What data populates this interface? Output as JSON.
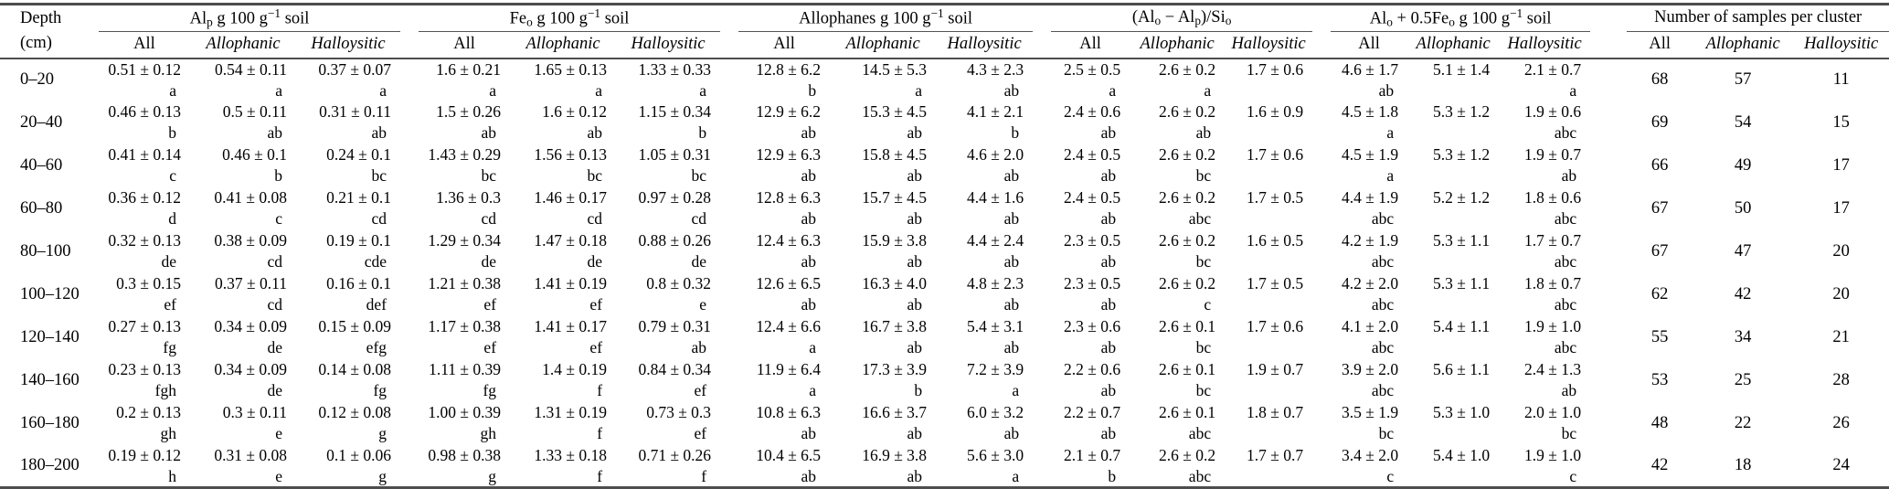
{
  "colors": {
    "rule_heavy": "#4d4d4d",
    "rule_light": "#555555",
    "text": "#000000",
    "background": "#ffffff"
  },
  "table": {
    "depth_header": {
      "line1": "Depth",
      "line2": "(cm)"
    },
    "groups": [
      {
        "id": "alp",
        "title_segments": [
          {
            "t": "Al"
          },
          {
            "t": "p",
            "m": "sub"
          },
          {
            "t": " g 100 g"
          },
          {
            "t": "−1",
            "m": "sup"
          },
          {
            "t": " soil"
          }
        ],
        "subheaders": [
          "All",
          "Allophanic",
          "Halloysitic"
        ]
      },
      {
        "id": "feo",
        "title_segments": [
          {
            "t": "Fe"
          },
          {
            "t": "o",
            "m": "sub"
          },
          {
            "t": " g 100 g"
          },
          {
            "t": "−1",
            "m": "sup"
          },
          {
            "t": " soil"
          }
        ],
        "subheaders": [
          "All",
          "Allophanic",
          "Halloysitic"
        ]
      },
      {
        "id": "allophanes",
        "title_segments": [
          {
            "t": "Allophanes g 100 g"
          },
          {
            "t": "−1",
            "m": "sup"
          },
          {
            "t": " soil"
          }
        ],
        "subheaders": [
          "All",
          "Allophanic",
          "Halloysitic"
        ]
      },
      {
        "id": "ratio",
        "title_segments": [
          {
            "t": "(Al"
          },
          {
            "t": "o",
            "m": "sub"
          },
          {
            "t": " − Al"
          },
          {
            "t": "p",
            "m": "sub"
          },
          {
            "t": ")/Si"
          },
          {
            "t": "o",
            "m": "sub"
          }
        ],
        "subheaders": [
          "All",
          "Allophanic",
          "Halloysitic"
        ]
      },
      {
        "id": "alofe",
        "title_segments": [
          {
            "t": "Al"
          },
          {
            "t": "o",
            "m": "sub"
          },
          {
            "t": " + 0.5Fe"
          },
          {
            "t": "o",
            "m": "sub"
          },
          {
            "t": " g 100 g"
          },
          {
            "t": "−1",
            "m": "sup"
          },
          {
            "t": " soil"
          }
        ],
        "subheaders": [
          "All",
          "Allophanic",
          "Halloysitic"
        ]
      },
      {
        "id": "samples",
        "title_segments": [
          {
            "t": "Number of samples per cluster"
          }
        ],
        "subheaders": [
          "All",
          "Allophanic",
          "Halloysitic"
        ]
      }
    ],
    "rows": [
      {
        "depth": "0–20",
        "alp": [
          [
            "0.51 ± 0.12",
            "a"
          ],
          [
            "0.54 ± 0.11",
            "a"
          ],
          [
            "0.37 ± 0.07",
            "a"
          ]
        ],
        "feo": [
          [
            "1.6 ± 0.21",
            "a"
          ],
          [
            "1.65 ± 0.13",
            "a"
          ],
          [
            "1.33 ± 0.33",
            "a"
          ]
        ],
        "allophanes": [
          [
            "12.8 ± 6.2",
            "b"
          ],
          [
            "14.5 ± 5.3",
            "a"
          ],
          [
            "4.3 ± 2.3",
            "ab"
          ]
        ],
        "ratio": [
          [
            "2.5 ± 0.5",
            "a"
          ],
          [
            "2.6 ± 0.2",
            "a"
          ],
          [
            "1.7 ± 0.6",
            ""
          ]
        ],
        "alofe": [
          [
            "4.6 ± 1.7",
            "ab"
          ],
          [
            "5.1 ± 1.4",
            ""
          ],
          [
            "2.1 ± 0.7",
            "a"
          ]
        ],
        "samples": [
          "68",
          "57",
          "11"
        ]
      },
      {
        "depth": "20–40",
        "alp": [
          [
            "0.46 ± 0.13",
            "b"
          ],
          [
            "0.5 ± 0.11",
            "ab"
          ],
          [
            "0.31 ± 0.11",
            "ab"
          ]
        ],
        "feo": [
          [
            "1.5 ± 0.26",
            "ab"
          ],
          [
            "1.6 ± 0.12",
            "ab"
          ],
          [
            "1.15 ± 0.34",
            "b"
          ]
        ],
        "allophanes": [
          [
            "12.9 ± 6.2",
            "ab"
          ],
          [
            "15.3 ± 4.5",
            "ab"
          ],
          [
            "4.1 ± 2.1",
            "b"
          ]
        ],
        "ratio": [
          [
            "2.4 ± 0.6",
            "ab"
          ],
          [
            "2.6 ± 0.2",
            "ab"
          ],
          [
            "1.6 ± 0.9",
            ""
          ]
        ],
        "alofe": [
          [
            "4.5 ± 1.8",
            "a"
          ],
          [
            "5.3 ± 1.2",
            ""
          ],
          [
            "1.9 ± 0.6",
            "abc"
          ]
        ],
        "samples": [
          "69",
          "54",
          "15"
        ]
      },
      {
        "depth": "40–60",
        "alp": [
          [
            "0.41 ± 0.14",
            "c"
          ],
          [
            "0.46 ± 0.1",
            "b"
          ],
          [
            "0.24 ± 0.1",
            "bc"
          ]
        ],
        "feo": [
          [
            "1.43 ± 0.29",
            "bc"
          ],
          [
            "1.56 ± 0.13",
            "bc"
          ],
          [
            "1.05 ± 0.31",
            "bc"
          ]
        ],
        "allophanes": [
          [
            "12.9 ± 6.3",
            "ab"
          ],
          [
            "15.8 ± 4.5",
            "ab"
          ],
          [
            "4.6 ± 2.0",
            "ab"
          ]
        ],
        "ratio": [
          [
            "2.4 ± 0.5",
            "ab"
          ],
          [
            "2.6 ± 0.2",
            "bc"
          ],
          [
            "1.7 ± 0.6",
            ""
          ]
        ],
        "alofe": [
          [
            "4.5 ± 1.9",
            "a"
          ],
          [
            "5.3 ± 1.2",
            ""
          ],
          [
            "1.9 ± 0.7",
            "ab"
          ]
        ],
        "samples": [
          "66",
          "49",
          "17"
        ]
      },
      {
        "depth": "60–80",
        "alp": [
          [
            "0.36 ± 0.12",
            "d"
          ],
          [
            "0.41 ± 0.08",
            "c"
          ],
          [
            "0.21 ± 0.1",
            "cd"
          ]
        ],
        "feo": [
          [
            "1.36 ± 0.3",
            "cd"
          ],
          [
            "1.46 ± 0.17",
            "cd"
          ],
          [
            "0.97 ± 0.28",
            "cd"
          ]
        ],
        "allophanes": [
          [
            "12.8 ± 6.3",
            "ab"
          ],
          [
            "15.7 ± 4.5",
            "ab"
          ],
          [
            "4.4 ± 1.6",
            "ab"
          ]
        ],
        "ratio": [
          [
            "2.4 ± 0.5",
            "ab"
          ],
          [
            "2.6 ± 0.2",
            "abc"
          ],
          [
            "1.7 ± 0.5",
            ""
          ]
        ],
        "alofe": [
          [
            "4.4 ± 1.9",
            "abc"
          ],
          [
            "5.2 ± 1.2",
            ""
          ],
          [
            "1.8 ± 0.6",
            "abc"
          ]
        ],
        "samples": [
          "67",
          "50",
          "17"
        ]
      },
      {
        "depth": "80–100",
        "alp": [
          [
            "0.32 ± 0.13",
            "de"
          ],
          [
            "0.38 ± 0.09",
            "cd"
          ],
          [
            "0.19 ± 0.1",
            "cde"
          ]
        ],
        "feo": [
          [
            "1.29 ± 0.34",
            "de"
          ],
          [
            "1.47 ± 0.18",
            "de"
          ],
          [
            "0.88 ± 0.26",
            "de"
          ]
        ],
        "allophanes": [
          [
            "12.4 ± 6.3",
            "ab"
          ],
          [
            "15.9 ± 3.8",
            "ab"
          ],
          [
            "4.4 ± 2.4",
            "ab"
          ]
        ],
        "ratio": [
          [
            "2.3 ± 0.5",
            "ab"
          ],
          [
            "2.6 ± 0.2",
            "bc"
          ],
          [
            "1.6 ± 0.5",
            ""
          ]
        ],
        "alofe": [
          [
            "4.2 ± 1.9",
            "abc"
          ],
          [
            "5.3 ± 1.1",
            ""
          ],
          [
            "1.7 ± 0.7",
            "abc"
          ]
        ],
        "samples": [
          "67",
          "47",
          "20"
        ]
      },
      {
        "depth": "100–120",
        "alp": [
          [
            "0.3 ± 0.15",
            "ef"
          ],
          [
            "0.37 ± 0.11",
            "cd"
          ],
          [
            "0.16 ± 0.1",
            "def"
          ]
        ],
        "feo": [
          [
            "1.21 ± 0.38",
            "ef"
          ],
          [
            "1.41 ± 0.19",
            "ef"
          ],
          [
            "0.8 ± 0.32",
            "e"
          ]
        ],
        "allophanes": [
          [
            "12.6 ± 6.5",
            "ab"
          ],
          [
            "16.3 ± 4.0",
            "ab"
          ],
          [
            "4.8 ± 2.3",
            "ab"
          ]
        ],
        "ratio": [
          [
            "2.3 ± 0.5",
            "ab"
          ],
          [
            "2.6 ± 0.2",
            "c"
          ],
          [
            "1.7 ± 0.5",
            ""
          ]
        ],
        "alofe": [
          [
            "4.2 ± 2.0",
            "abc"
          ],
          [
            "5.3 ± 1.1",
            ""
          ],
          [
            "1.8 ± 0.7",
            "abc"
          ]
        ],
        "samples": [
          "62",
          "42",
          "20"
        ]
      },
      {
        "depth": "120–140",
        "alp": [
          [
            "0.27 ± 0.13",
            "fg"
          ],
          [
            "0.34 ± 0.09",
            "de"
          ],
          [
            "0.15 ± 0.09",
            "efg"
          ]
        ],
        "feo": [
          [
            "1.17 ± 0.38",
            "ef"
          ],
          [
            "1.41 ± 0.17",
            "ef"
          ],
          [
            "0.79 ± 0.31",
            "ab"
          ]
        ],
        "allophanes": [
          [
            "12.4 ± 6.6",
            "a"
          ],
          [
            "16.7 ± 3.8",
            "ab"
          ],
          [
            "5.4 ± 3.1",
            "ab"
          ]
        ],
        "ratio": [
          [
            "2.3 ± 0.6",
            "ab"
          ],
          [
            "2.6 ± 0.1",
            "bc"
          ],
          [
            "1.7 ± 0.6",
            ""
          ]
        ],
        "alofe": [
          [
            "4.1 ± 2.0",
            "abc"
          ],
          [
            "5.4 ± 1.1",
            ""
          ],
          [
            "1.9 ± 1.0",
            "abc"
          ]
        ],
        "samples": [
          "55",
          "34",
          "21"
        ]
      },
      {
        "depth": "140–160",
        "alp": [
          [
            "0.23 ± 0.13",
            "fgh"
          ],
          [
            "0.34 ± 0.09",
            "de"
          ],
          [
            "0.14 ± 0.08",
            "fg"
          ]
        ],
        "feo": [
          [
            "1.11 ± 0.39",
            "fg"
          ],
          [
            "1.4 ± 0.19",
            "f"
          ],
          [
            "0.84 ± 0.34",
            "ef"
          ]
        ],
        "allophanes": [
          [
            "11.9 ± 6.4",
            "a"
          ],
          [
            "17.3 ± 3.9",
            "b"
          ],
          [
            "7.2 ± 3.9",
            "a"
          ]
        ],
        "ratio": [
          [
            "2.2 ± 0.6",
            "ab"
          ],
          [
            "2.6 ± 0.1",
            "bc"
          ],
          [
            "1.9 ± 0.7",
            ""
          ]
        ],
        "alofe": [
          [
            "3.9 ± 2.0",
            "abc"
          ],
          [
            "5.6 ± 1.1",
            ""
          ],
          [
            "2.4 ± 1.3",
            "ab"
          ]
        ],
        "samples": [
          "53",
          "25",
          "28"
        ]
      },
      {
        "depth": "160–180",
        "alp": [
          [
            "0.2 ± 0.13",
            "gh"
          ],
          [
            "0.3 ± 0.11",
            "e"
          ],
          [
            "0.12 ± 0.08",
            "g"
          ]
        ],
        "feo": [
          [
            "1.00 ± 0.39",
            "gh"
          ],
          [
            "1.31 ± 0.19",
            "f"
          ],
          [
            "0.73 ± 0.3",
            "ef"
          ]
        ],
        "allophanes": [
          [
            "10.8 ± 6.3",
            "ab"
          ],
          [
            "16.6 ± 3.7",
            "ab"
          ],
          [
            "6.0 ± 3.2",
            "ab"
          ]
        ],
        "ratio": [
          [
            "2.2 ± 0.7",
            "ab"
          ],
          [
            "2.6 ± 0.1",
            "abc"
          ],
          [
            "1.8 ± 0.7",
            ""
          ]
        ],
        "alofe": [
          [
            "3.5 ± 1.9",
            "bc"
          ],
          [
            "5.3 ± 1.0",
            ""
          ],
          [
            "2.0 ± 1.0",
            "bc"
          ]
        ],
        "samples": [
          "48",
          "22",
          "26"
        ]
      },
      {
        "depth": "180–200",
        "alp": [
          [
            "0.19 ± 0.12",
            "h"
          ],
          [
            "0.31 ± 0.08",
            "e"
          ],
          [
            "0.1 ± 0.06",
            "g"
          ]
        ],
        "feo": [
          [
            "0.98 ± 0.38",
            "g"
          ],
          [
            "1.33 ± 0.18",
            "f"
          ],
          [
            "0.71 ± 0.26",
            "f"
          ]
        ],
        "allophanes": [
          [
            "10.4 ± 6.5",
            "ab"
          ],
          [
            "16.9 ± 3.8",
            "ab"
          ],
          [
            "5.6 ± 3.0",
            "a"
          ]
        ],
        "ratio": [
          [
            "2.1 ± 0.7",
            "b"
          ],
          [
            "2.6 ± 0.2",
            "abc"
          ],
          [
            "1.7 ± 0.7",
            ""
          ]
        ],
        "alofe": [
          [
            "3.4 ± 2.0",
            "c"
          ],
          [
            "5.4 ± 1.0",
            ""
          ],
          [
            "1.9 ± 1.0",
            "c"
          ]
        ],
        "samples": [
          "42",
          "18",
          "24"
        ]
      }
    ]
  }
}
